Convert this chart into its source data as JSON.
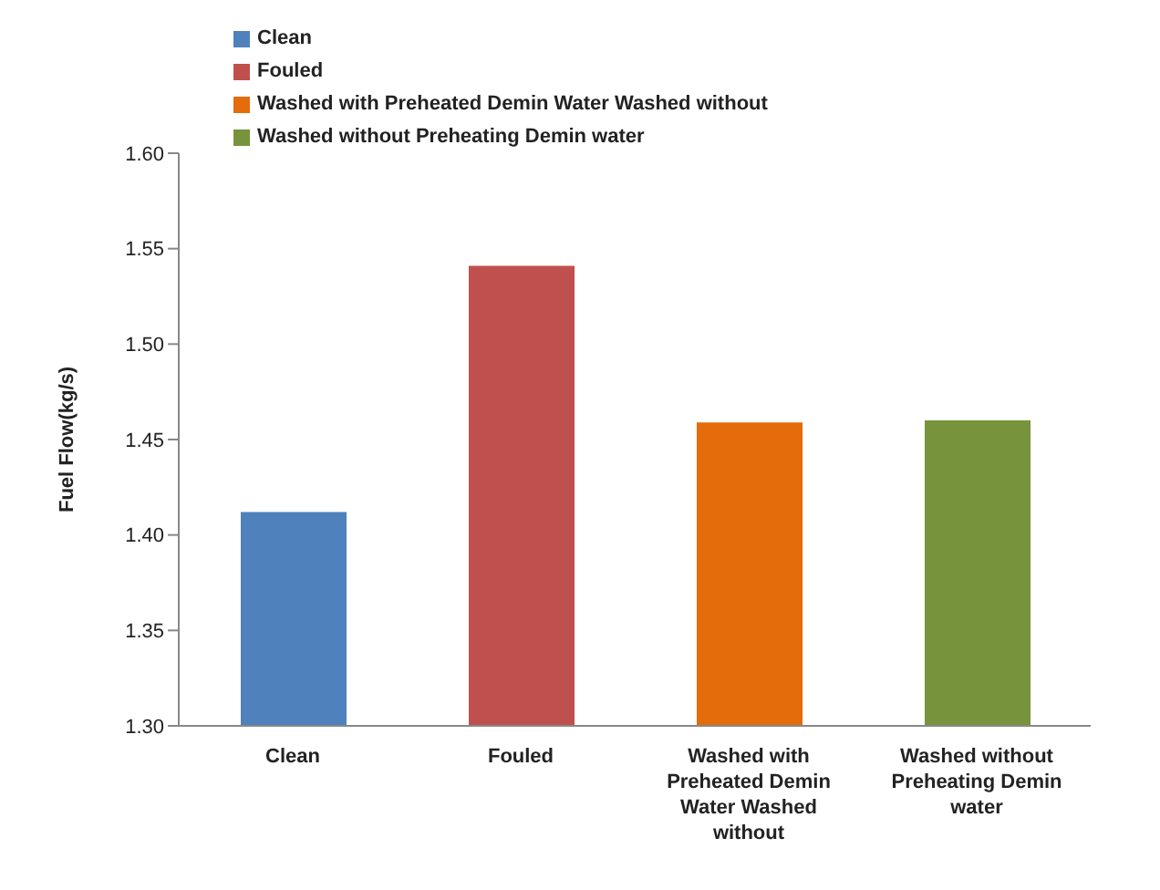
{
  "chart_data": {
    "type": "bar",
    "categories": [
      "Clean",
      "Fouled",
      "Washed with Preheated Demin Water Washed without",
      "Washed without Preheating Demin water"
    ],
    "series": [
      {
        "name": "Clean",
        "color": "#4f81bd",
        "values": [
          1.412,
          null,
          null,
          null
        ]
      },
      {
        "name": "Fouled",
        "color": "#c0504d",
        "values": [
          null,
          1.541,
          null,
          null
        ]
      },
      {
        "name": "Washed with Preheated Demin Water Washed without",
        "color": "#e46c0a",
        "values": [
          null,
          null,
          1.459,
          null
        ]
      },
      {
        "name": "Washed without Preheating Demin water",
        "color": "#77933c",
        "values": [
          null,
          null,
          null,
          1.46
        ]
      }
    ],
    "stacked": true,
    "ylabel": "Fuel Flow(kg/s)",
    "ylim": [
      1.3,
      1.6
    ],
    "yticks": [
      {
        "value": 1.3,
        "label": "1.30"
      },
      {
        "value": 1.35,
        "label": "1.35"
      },
      {
        "value": 1.4,
        "label": "1.40"
      },
      {
        "value": 1.45,
        "label": "1.45"
      },
      {
        "value": 1.5,
        "label": "1.50"
      },
      {
        "value": 1.55,
        "label": "1.55"
      },
      {
        "value": 1.6,
        "label": "1.60"
      }
    ],
    "grid": false,
    "legend": "top left"
  }
}
